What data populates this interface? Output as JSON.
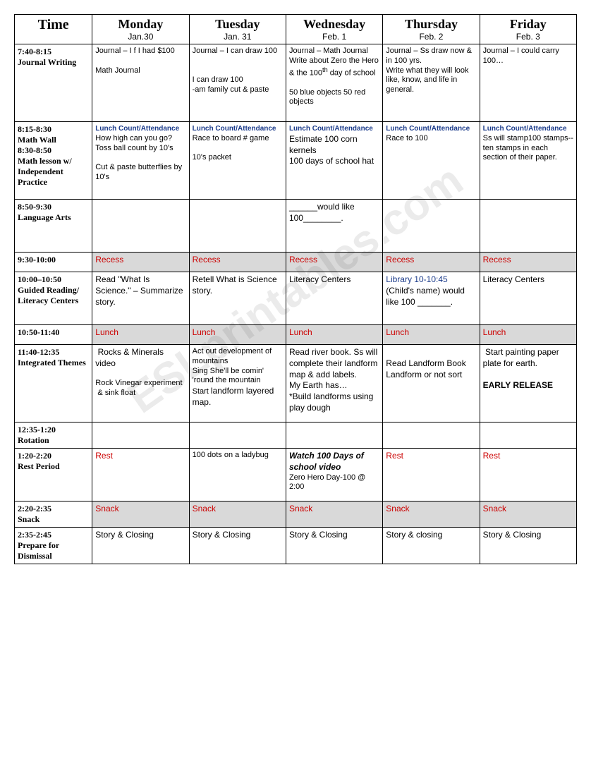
{
  "watermark": "ESLprintables.com",
  "header": {
    "time": "Time",
    "days": [
      {
        "name": "Monday",
        "date": "Jan.30"
      },
      {
        "name": "Tuesday",
        "date": "Jan. 31"
      },
      {
        "name": "Wednesday",
        "date": "Feb. 1"
      },
      {
        "name": "Thursday",
        "date": "Feb. 2"
      },
      {
        "name": "Friday",
        "date": "Feb. 3"
      }
    ]
  },
  "colors": {
    "lunch_header": "#1a3a8a",
    "red": "#c00",
    "blue": "#1a3a8a",
    "gray_bg": "#d9d9d9",
    "border": "#000"
  },
  "rows": [
    {
      "time": "7:40-8:15\nJournal Writing",
      "cells": [
        {
          "html": "Journal – I f I had $100<br><br>Math Journal"
        },
        {
          "html": "Journal – I can draw 100<br><br><br>I can draw 100<br>-am family cut & paste"
        },
        {
          "html": "Journal – Math Journal<br>Write about Zero the Hero & the 100<sup>th</sup> day of school<br><br>50 blue objects 50 red objects"
        },
        {
          "html": "Journal – Ss draw now & in 100 yrs.<br>Write what they will look like, know, and life in general."
        },
        {
          "html": "Journal – I could carry 100…"
        }
      ]
    },
    {
      "time": "8:15-8:30\nMath Wall\n8:30-8:50\nMath lesson w/ Independent Practice",
      "cells": [
        {
          "html": "<span class='lunch-header'>Lunch Count/Attendance</span><br>How high can you go?<br>Toss ball count by 10's<br><br>Cut & paste butterflies by 10's"
        },
        {
          "html": "<span class='lunch-header'>Lunch Count/Attendance</span><br>Race to board # game<br><br>10's packet"
        },
        {
          "html": "<span class='lunch-header'>Lunch Count/Attendance</span><br><span class='cell-main'>Estimate 100 corn kernels<br>100 days of school hat</span>"
        },
        {
          "html": "<span class='lunch-header'>Lunch Count/Attendance</span><br>Race to 100"
        },
        {
          "html": "<span class='lunch-header'>Lunch Count/Attendance</span><br>Ss will stamp100 stamps--ten stamps in each section of their paper."
        }
      ]
    },
    {
      "time": "8:50-9:30\nLanguage Arts",
      "cells": [
        {
          "html": ""
        },
        {
          "html": ""
        },
        {
          "html": "<span class='cell-main'>______would like 100________.</span>"
        },
        {
          "html": ""
        },
        {
          "html": ""
        }
      ]
    },
    {
      "time": "9:30-10:00",
      "gray": true,
      "cells": [
        {
          "html": "<span class='red'>Recess</span>"
        },
        {
          "html": "<span class='red'>Recess</span>"
        },
        {
          "html": "<span class='red'>Recess</span>"
        },
        {
          "html": "<span class='red'>Recess</span>"
        },
        {
          "html": "<span class='red'>Recess</span>"
        }
      ]
    },
    {
      "time": "10:00–10:50\nGuided Reading/ Literacy Centers",
      "cells": [
        {
          "html": "<span class='cell-main'>Read \"What Is Science.\" – Summarize story.</span>"
        },
        {
          "html": "<span class='cell-main'>Retell What is Science story.</span>"
        },
        {
          "html": "<span class='cell-main'>Literacy Centers</span>"
        },
        {
          "html": "<span class='blue'>Library 10-10:45</span><br><span class='cell-main'>(Child's name) would like 100 _______.</span>"
        },
        {
          "html": "<span class='cell-main'>Literacy Centers</span>"
        }
      ]
    },
    {
      "time": "10:50-11:40",
      "gray": true,
      "cells": [
        {
          "html": "<span class='red'>Lunch</span>"
        },
        {
          "html": "<span class='red'>Lunch</span>"
        },
        {
          "html": "<span class='red'>Lunch</span>"
        },
        {
          "html": "<span class='red'>Lunch</span>"
        },
        {
          "html": "<span class='red'>Lunch</span>"
        }
      ]
    },
    {
      "time": "11:40-12:35\nIntegrated Themes",
      "cells": [
        {
          "html": "<span class='cell-main'>&nbsp;Rocks & Minerals video</span><br><br>Rock Vinegar experiment &nbsp;& sink float"
        },
        {
          "html": "Act out development of mountains<br>Sing She'll be comin' 'round the mountain<br>Start <span class='cell-main'>landform layered map.</span>"
        },
        {
          "html": "<span class='cell-main'>Read river book. Ss will complete their landform map & add labels.<br>My Earth has…<br>*Build landforms using play dough</span>"
        },
        {
          "html": "<span class='cell-main'><br>Read Landform Book<br>Landform or not sort</span>"
        },
        {
          "html": "<span class='cell-main'>&nbsp;Start painting paper plate for earth.<br><br><span class='bold'>EARLY RELEASE</span></span>"
        }
      ]
    },
    {
      "time": " 12:35-1:20\nRotation",
      "cells": [
        {
          "html": ""
        },
        {
          "html": ""
        },
        {
          "html": ""
        },
        {
          "html": ""
        },
        {
          "html": ""
        }
      ]
    },
    {
      "time": "1:20-2:20\nRest Period",
      "cells": [
        {
          "html": "<span class='red'>Rest</span>"
        },
        {
          "html": "100 dots on a ladybug"
        },
        {
          "html": "<span class='cell-main italic-bold'>Watch 100 Days of school video</span><br>Zero Hero Day-100 @ 2:00"
        },
        {
          "html": "<span class='red'>Rest</span>"
        },
        {
          "html": "<span class='red'>Rest</span>"
        }
      ]
    },
    {
      "time": " 2:20-2:35\nSnack",
      "gray": true,
      "cells": [
        {
          "html": "<span class='red'>Snack</span>"
        },
        {
          "html": "<span class='red'>Snack</span>"
        },
        {
          "html": "<span class='red'>Snack</span>"
        },
        {
          "html": "<span class='red'>Snack</span>"
        },
        {
          "html": "<span class='red'>Snack</span>"
        }
      ]
    },
    {
      "time": "2:35-2:45\nPrepare for Dismissal",
      "cells": [
        {
          "html": "<span class='cell-main'>Story & Closing</span>"
        },
        {
          "html": "<span class='cell-main'>Story & Closing</span>"
        },
        {
          "html": "<span class='cell-main'>Story & Closing</span>"
        },
        {
          "html": "<span class='cell-main'>Story & closing</span>"
        },
        {
          "html": "<span class='cell-main'>Story & Closing</span>"
        }
      ]
    }
  ],
  "row_heights": [
    "tall-row",
    "tall-row",
    "med-row",
    "short-row",
    "med-row",
    "short-row",
    "tall-row",
    "",
    "med-row",
    "short-row",
    ""
  ]
}
